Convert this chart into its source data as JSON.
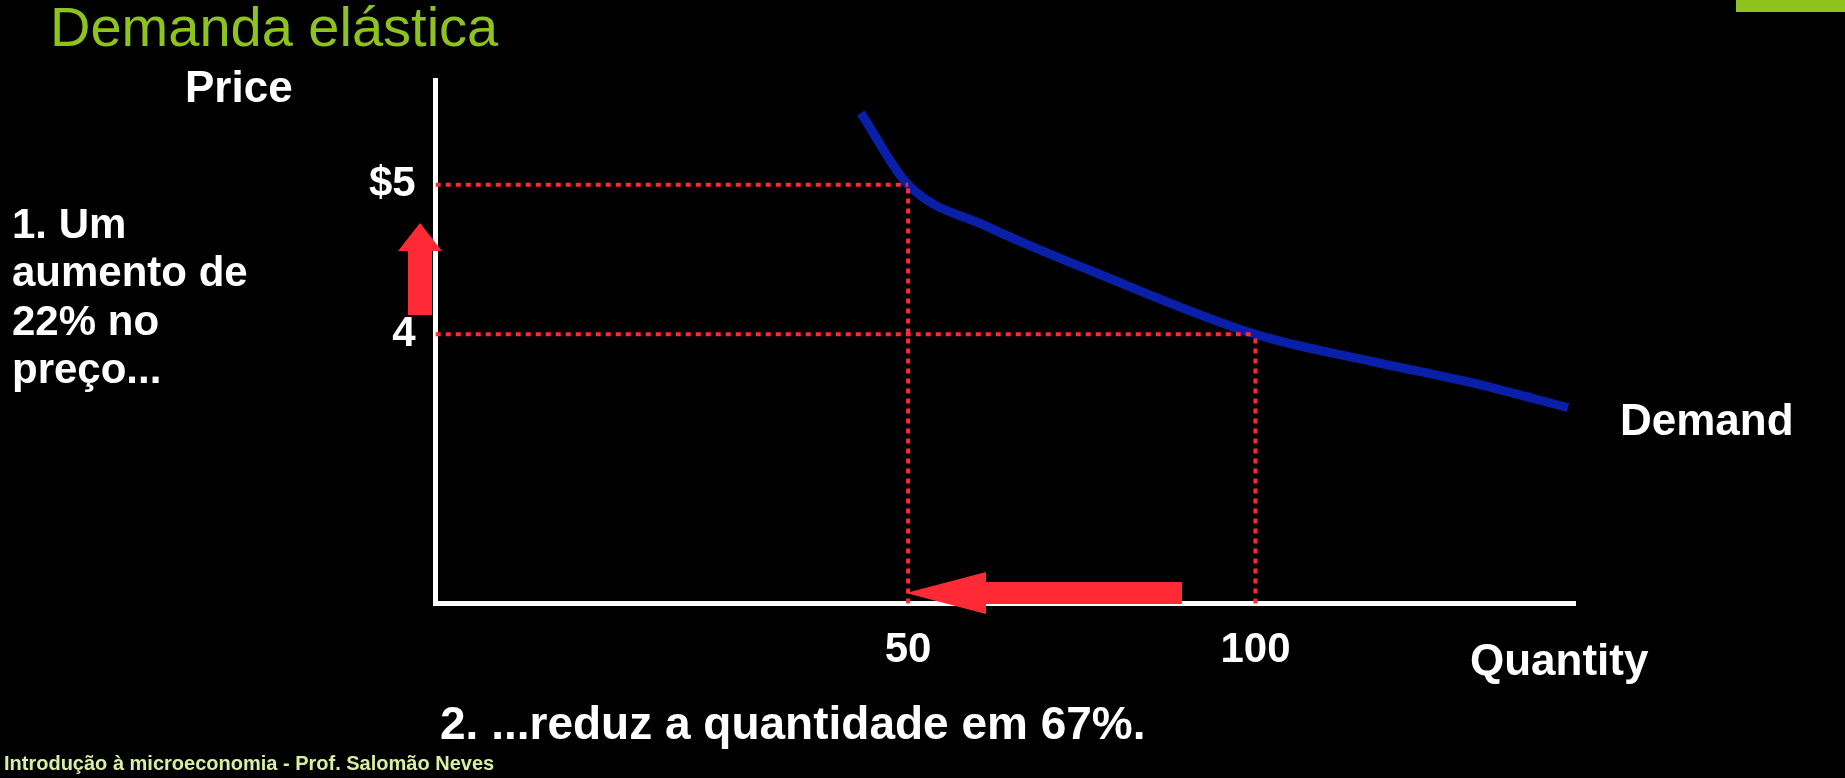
{
  "chart_data": {
    "type": "line",
    "title": "Demanda elástica",
    "xlabel": "Quantity",
    "ylabel": "Price",
    "x": [
      43.2,
      50,
      61.4,
      77.1,
      100,
      116.6,
      130.8,
      145
    ],
    "series": [
      {
        "name": "Demand",
        "color": "#0a1fa8",
        "values": [
          5.48,
          5,
          4.72,
          4.41,
          4,
          3.82,
          3.68,
          3.51
        ]
      }
    ],
    "xlim": [
      -18,
      146
    ],
    "ylim": [
      2.2,
      5.7
    ],
    "xticks": [
      50,
      100
    ],
    "yticks": [
      4,
      {
        "value": 5,
        "label": "$5"
      }
    ],
    "marker": "none",
    "line_style": "solid",
    "ref_lines": [
      {
        "axis": "y",
        "value": 5,
        "color": "#ff2a35",
        "line_style": "dotted"
      },
      {
        "axis": "y",
        "value": 4,
        "color": "#ff2a35",
        "line_style": "dotted"
      },
      {
        "axis": "x",
        "value": 50,
        "color": "#ff2a35",
        "line_style": "dotted"
      },
      {
        "axis": "x",
        "value": 100,
        "color": "#ff2a35",
        "line_style": "dotted"
      }
    ],
    "annotations": [
      "1. Um aumento de 22% no preço...",
      "2. ...reduz a quantidade em 67%.",
      "Introdução à microeconomia - Prof. Salomão Neves"
    ]
  }
}
